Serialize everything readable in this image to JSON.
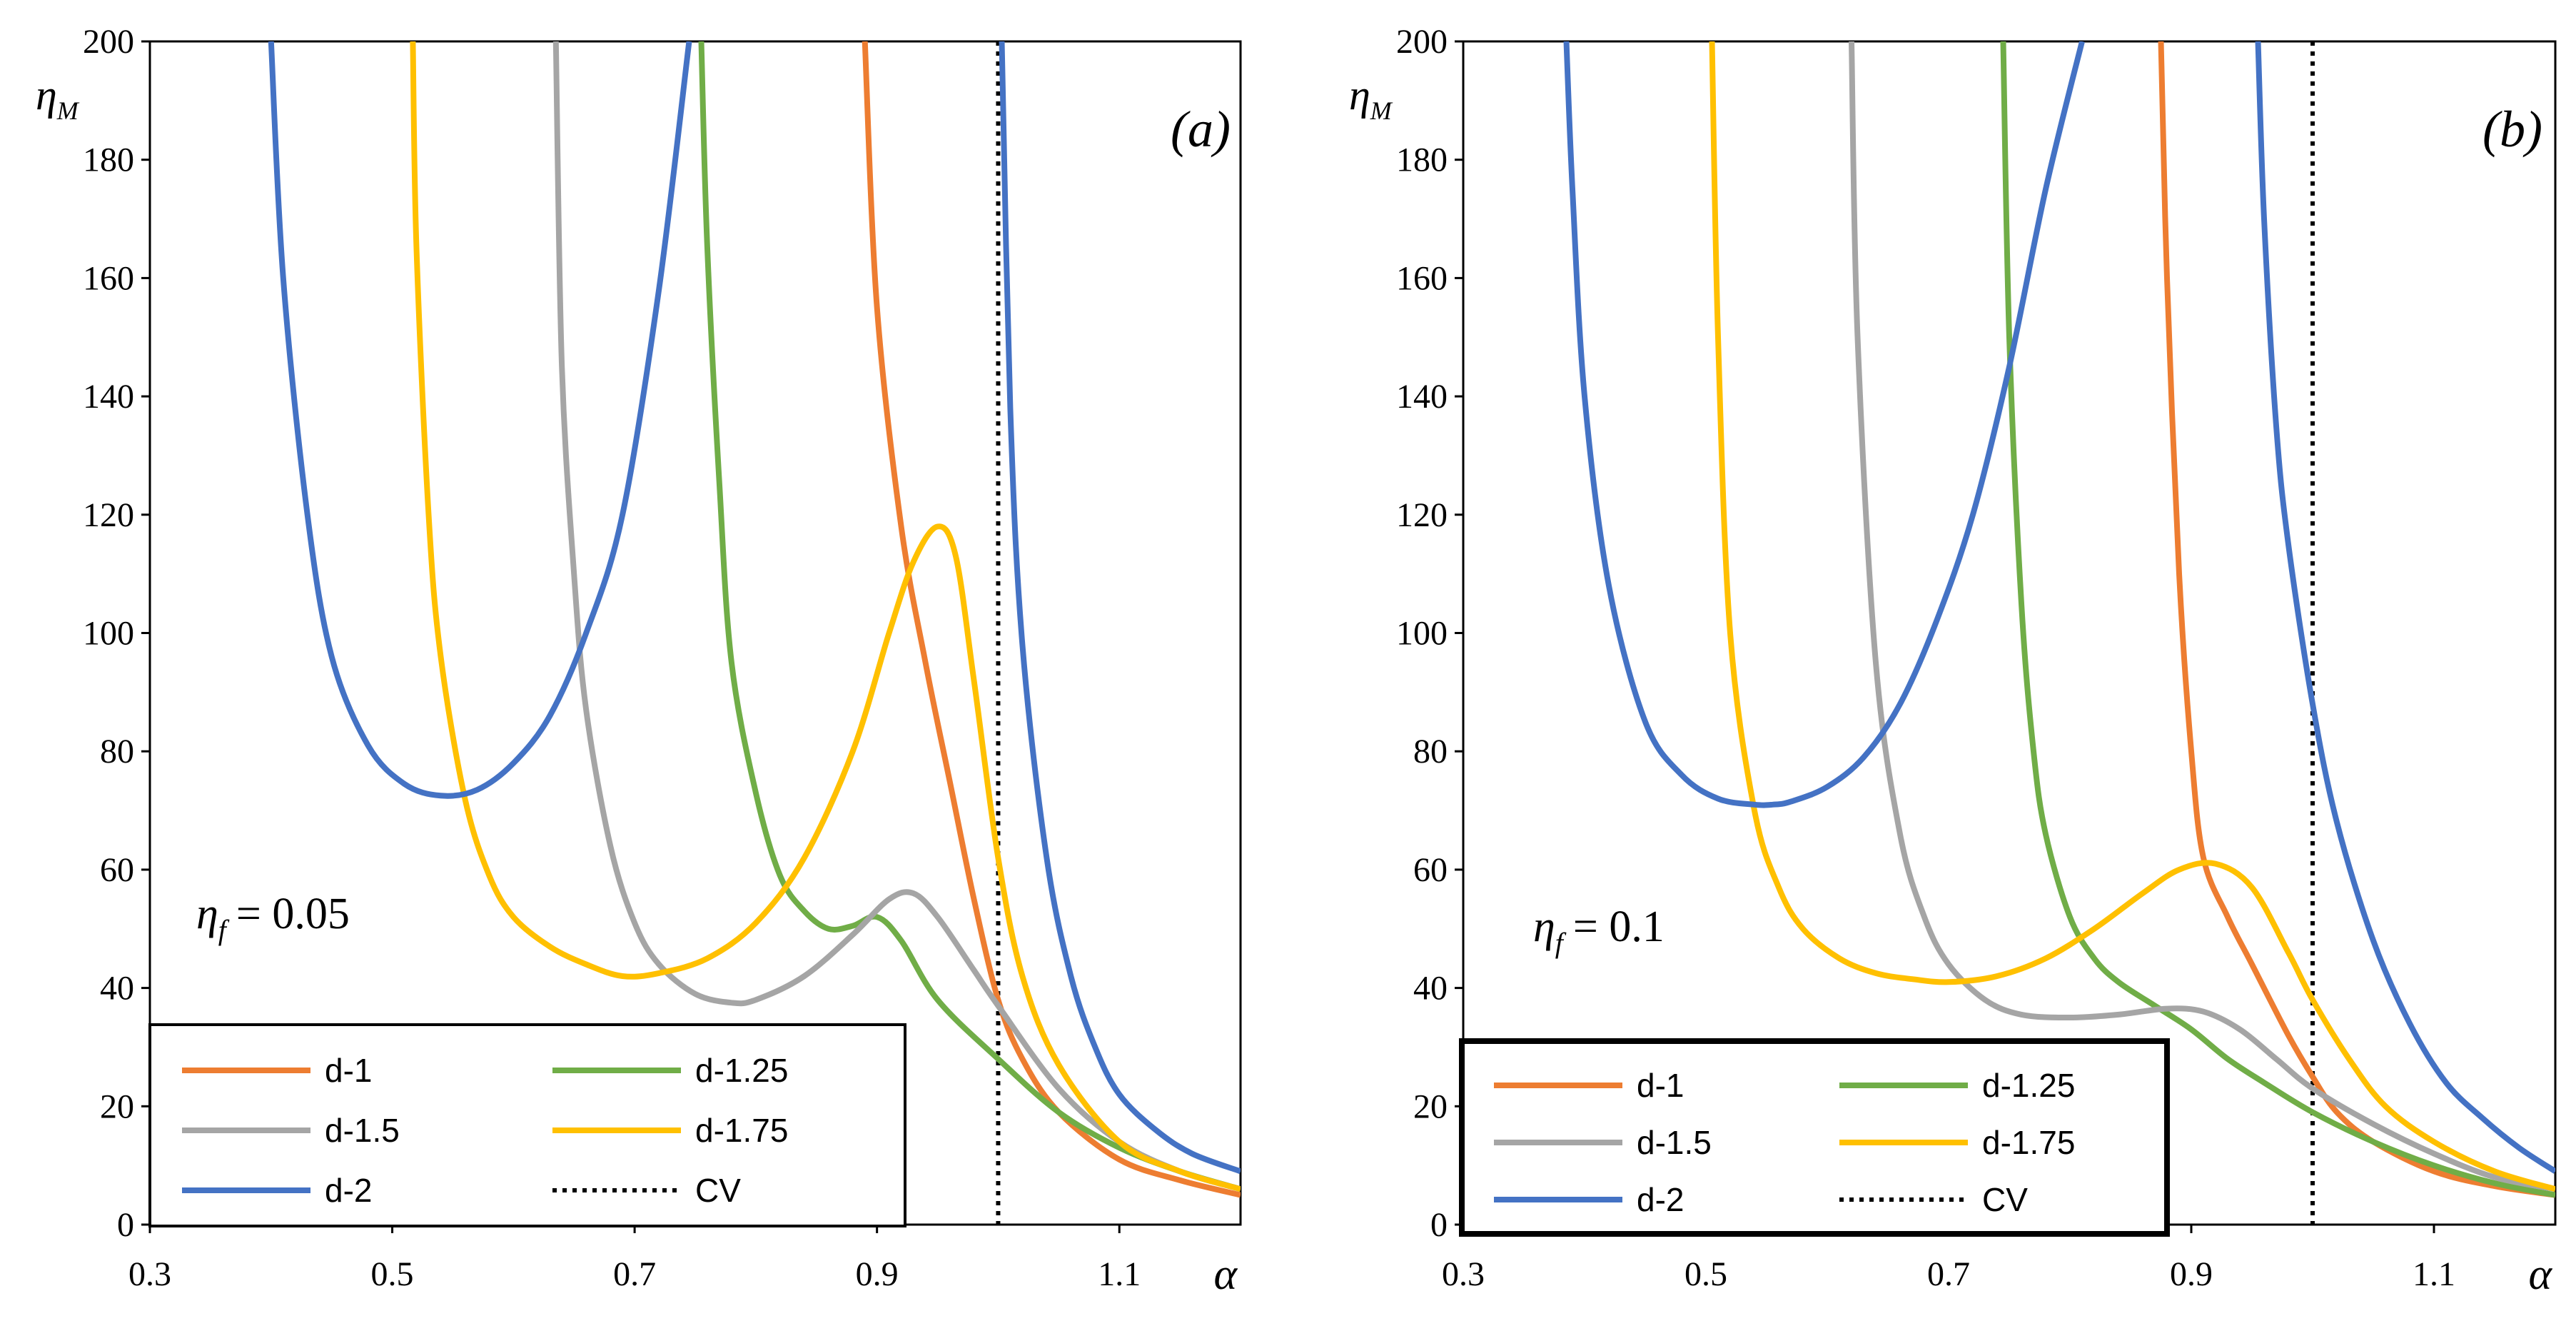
{
  "chart_data": [
    {
      "type": "line",
      "panel_label": "(a)",
      "ylabel_main": "η",
      "ylabel_sub": "M",
      "xlabel": "α",
      "annotation": {
        "symbol": "η",
        "sub": "f",
        "text": "= 0.05"
      },
      "xlim": [
        0.3,
        1.2
      ],
      "ylim": [
        0,
        200
      ],
      "xticks": [
        "0.3",
        "0.5",
        "0.7",
        "0.9",
        "1.1"
      ],
      "yticks": [
        "0",
        "20",
        "40",
        "60",
        "80",
        "100",
        "120",
        "140",
        "160",
        "180",
        "200"
      ],
      "grid": false,
      "legend_position": "bottom-left",
      "colors": {
        "d-1": "#ED7D31",
        "d-1.25": "#70AD47",
        "d-1.5": "#A5A5A5",
        "d-1.75": "#FFC000",
        "d-2": "#4472C4",
        "CV": "#000000"
      },
      "series": [
        {
          "name": "d-1",
          "color": "#ED7D31",
          "x": [
            0.89,
            0.9,
            0.92,
            0.94,
            0.96,
            0.98,
            1.0,
            1.02,
            1.05,
            1.1,
            1.15,
            1.2
          ],
          "y": [
            200,
            155,
            118,
            95,
            75,
            55,
            38,
            28,
            19,
            11,
            7.5,
            5
          ]
        },
        {
          "name": "d-1.25",
          "color": "#70AD47",
          "x": [
            0.755,
            0.76,
            0.77,
            0.78,
            0.8,
            0.82,
            0.84,
            0.86,
            0.88,
            0.9,
            0.92,
            0.95,
            1.0,
            1.05,
            1.1,
            1.15,
            1.2
          ],
          "y": [
            200,
            165,
            125,
            95,
            73,
            59,
            53,
            50,
            50.5,
            52,
            48,
            38,
            28,
            19,
            13,
            9,
            6
          ]
        },
        {
          "name": "d-1.5",
          "color": "#A5A5A5",
          "x": [
            0.635,
            0.64,
            0.65,
            0.66,
            0.68,
            0.7,
            0.72,
            0.75,
            0.78,
            0.8,
            0.84,
            0.88,
            0.91,
            0.93,
            0.95,
            0.98,
            1.0,
            1.05,
            1.1,
            1.15,
            1.2
          ],
          "y": [
            200,
            145,
            110,
            87,
            64,
            51,
            44,
            39,
            37.5,
            38,
            42,
            49,
            55,
            56,
            52,
            43,
            37,
            23,
            14,
            9,
            6
          ]
        },
        {
          "name": "d-1.75",
          "color": "#FFC000",
          "x": [
            0.517,
            0.52,
            0.53,
            0.54,
            0.56,
            0.58,
            0.6,
            0.63,
            0.66,
            0.69,
            0.72,
            0.76,
            0.8,
            0.84,
            0.88,
            0.91,
            0.93,
            0.95,
            0.965,
            0.98,
            1.0,
            1.02,
            1.05,
            1.1,
            1.15,
            1.2
          ],
          "y": [
            200,
            165,
            120,
            96,
            72,
            59,
            52,
            47,
            44,
            42,
            42.5,
            45,
            51,
            62,
            80,
            100,
            112,
            118,
            113,
            92,
            62,
            42,
            27,
            14,
            9,
            6
          ]
        },
        {
          "name": "d-2",
          "color": "#4472C4",
          "x": [
            0.4,
            0.41,
            0.43,
            0.45,
            0.48,
            0.51,
            0.54,
            0.57,
            0.6,
            0.63,
            0.66,
            0.69,
            0.72,
            0.745
          ],
          "y": [
            200,
            160,
            120,
            96,
            81,
            74.5,
            72.5,
            73.5,
            78,
            86,
            100,
            120,
            158,
            200
          ]
        },
        {
          "name": "d-2",
          "color": "#4472C4",
          "x": [
            1.003,
            1.01,
            1.02,
            1.04,
            1.06,
            1.08,
            1.1,
            1.13,
            1.16,
            1.2
          ],
          "y": [
            200,
            138,
            98,
            62,
            42,
            30,
            22,
            16,
            12,
            9
          ]
        }
      ],
      "cv_line": {
        "name": "CV",
        "x": 1.0
      }
    },
    {
      "type": "line",
      "panel_label": "(b)",
      "ylabel_main": "η",
      "ylabel_sub": "M",
      "xlabel": "α",
      "annotation": {
        "symbol": "η",
        "sub": "f",
        "text": "= 0.1"
      },
      "xlim": [
        0.3,
        1.2
      ],
      "ylim": [
        0,
        200
      ],
      "xticks": [
        "0.3",
        "0.5",
        "0.7",
        "0.9",
        "1.1"
      ],
      "yticks": [
        "0",
        "20",
        "40",
        "60",
        "80",
        "100",
        "120",
        "140",
        "160",
        "180",
        "200"
      ],
      "grid": false,
      "legend_position": "bottom-left",
      "colors": {
        "d-1": "#ED7D31",
        "d-1.25": "#70AD47",
        "d-1.5": "#A5A5A5",
        "d-1.75": "#FFC000",
        "d-2": "#4472C4",
        "CV": "#000000"
      },
      "series": [
        {
          "name": "d-1",
          "color": "#ED7D31",
          "x": [
            0.875,
            0.88,
            0.89,
            0.9,
            0.91,
            0.93,
            0.95,
            0.98,
            1.0,
            1.02,
            1.05,
            1.1,
            1.15,
            1.2
          ],
          "y": [
            200,
            160,
            110,
            80,
            62,
            52,
            44,
            32,
            25,
            19,
            14,
            9,
            6.5,
            5
          ]
        },
        {
          "name": "d-1.25",
          "color": "#70AD47",
          "x": [
            0.745,
            0.75,
            0.76,
            0.77,
            0.78,
            0.8,
            0.82,
            0.84,
            0.87,
            0.9,
            0.93,
            0.96,
            1.0,
            1.05,
            1.1,
            1.15,
            1.2
          ],
          "y": [
            200,
            150,
            105,
            80,
            66,
            52,
            45,
            41,
            37,
            33,
            28,
            24,
            19,
            14,
            10,
            7,
            5
          ]
        },
        {
          "name": "d-1.5",
          "color": "#A5A5A5",
          "x": [
            0.62,
            0.625,
            0.64,
            0.66,
            0.68,
            0.7,
            0.73,
            0.76,
            0.8,
            0.84,
            0.88,
            0.91,
            0.94,
            0.97,
            1.0,
            1.05,
            1.1,
            1.15,
            1.2
          ],
          "y": [
            200,
            150,
            95,
            66,
            52,
            44,
            38,
            35.5,
            35,
            35.5,
            36.5,
            36,
            33,
            28,
            23,
            17,
            12,
            8,
            6
          ]
        },
        {
          "name": "d-1.75",
          "color": "#FFC000",
          "x": [
            0.505,
            0.51,
            0.52,
            0.54,
            0.56,
            0.58,
            0.61,
            0.64,
            0.67,
            0.7,
            0.74,
            0.78,
            0.82,
            0.86,
            0.89,
            0.92,
            0.95,
            0.98,
            1.0,
            1.03,
            1.06,
            1.1,
            1.15,
            1.2
          ],
          "y": [
            200,
            150,
            100,
            70,
            57,
            50,
            45,
            42.5,
            41.5,
            41,
            42,
            45,
            50,
            56,
            60,
            61,
            57,
            46,
            38,
            28,
            20,
            14,
            9,
            6
          ]
        },
        {
          "name": "d-2",
          "color": "#4472C4",
          "x": [
            0.385,
            0.39,
            0.4,
            0.42,
            0.45,
            0.48,
            0.51,
            0.54,
            0.555,
            0.57,
            0.6,
            0.63,
            0.66,
            0.69,
            0.72,
            0.75,
            0.78,
            0.81
          ],
          "y": [
            200,
            175,
            140,
            108,
            85,
            76,
            72,
            71,
            71,
            71.5,
            74,
            79,
            88,
            102,
            120,
            145,
            175,
            200
          ]
        },
        {
          "name": "d-2",
          "color": "#4472C4",
          "x": [
            0.955,
            0.96,
            0.97,
            0.98,
            1.0,
            1.02,
            1.05,
            1.08,
            1.11,
            1.14,
            1.17,
            1.2
          ],
          "y": [
            200,
            170,
            135,
            115,
            88,
            68,
            48,
            34,
            24,
            18,
            13,
            9
          ]
        }
      ],
      "cv_line": {
        "name": "CV",
        "x": 1.0
      }
    }
  ]
}
